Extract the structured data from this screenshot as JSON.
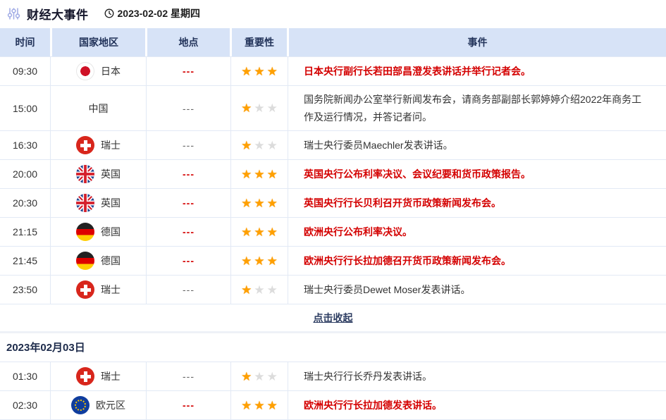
{
  "header": {
    "title": "财经大事件",
    "date": "2023-02-02 星期四",
    "icons": [
      "sliders-icon",
      "clock-icon"
    ]
  },
  "table": {
    "columns": [
      "时间",
      "国家地区",
      "地点",
      "重要性",
      "事件"
    ],
    "max_stars": 3
  },
  "day1": {
    "rows": [
      {
        "time": "09:30",
        "country": "日本",
        "flag": "japan",
        "location": "---",
        "highlight": true,
        "stars": 3,
        "event": "日本央行副行长若田部昌澄发表讲话并举行记者会。"
      },
      {
        "time": "15:00",
        "country": "中国",
        "flag": "none",
        "location": "---",
        "highlight": false,
        "stars": 1,
        "event": "国务院新闻办公室举行新闻发布会，请商务部副部长郭婷婷介绍2022年商务工作及运行情况，并答记者问。"
      },
      {
        "time": "16:30",
        "country": "瑞士",
        "flag": "switzerland",
        "location": "---",
        "highlight": false,
        "stars": 1,
        "event": "瑞士央行委员Maechler发表讲话。"
      },
      {
        "time": "20:00",
        "country": "英国",
        "flag": "uk",
        "location": "---",
        "highlight": true,
        "stars": 3,
        "event": "英国央行公布利率决议、会议纪要和货币政策报告。"
      },
      {
        "time": "20:30",
        "country": "英国",
        "flag": "uk",
        "location": "---",
        "highlight": true,
        "stars": 3,
        "event": "英国央行行长贝利召开货币政策新闻发布会。"
      },
      {
        "time": "21:15",
        "country": "德国",
        "flag": "germany",
        "location": "---",
        "highlight": true,
        "stars": 3,
        "event": "欧洲央行公布利率决议。"
      },
      {
        "time": "21:45",
        "country": "德国",
        "flag": "germany",
        "location": "---",
        "highlight": true,
        "stars": 3,
        "event": "欧洲央行行长拉加德召开货币政策新闻发布会。"
      },
      {
        "time": "23:50",
        "country": "瑞士",
        "flag": "switzerland",
        "location": "---",
        "highlight": false,
        "stars": 1,
        "event": "瑞士央行委员Dewet Moser发表讲话。"
      }
    ],
    "collapse_label": "点击收起"
  },
  "day2": {
    "date_label": "2023年02月03日",
    "rows": [
      {
        "time": "01:30",
        "country": "瑞士",
        "flag": "switzerland",
        "location": "---",
        "highlight": false,
        "stars": 1,
        "event": "瑞士央行行长乔丹发表讲话。"
      },
      {
        "time": "02:30",
        "country": "欧元区",
        "flag": "eu",
        "location": "---",
        "highlight": true,
        "stars": 3,
        "event": "欧洲央行行长拉加德发表讲话。"
      }
    ]
  },
  "colors": {
    "highlight_red": "#d40000",
    "star_active": "#ffa000",
    "star_inactive": "#dcdcdc",
    "header_bg": "#d7e3f7"
  }
}
